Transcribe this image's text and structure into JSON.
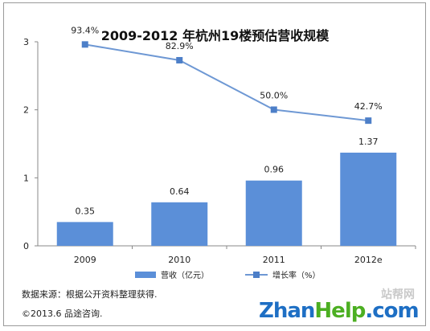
{
  "chart_data": {
    "type": "bar+line",
    "title": "2009-2012 年杭州19楼预估营收规模",
    "categories": [
      "2009",
      "2010",
      "2011",
      "2012e"
    ],
    "y_axis": {
      "ylim": [
        0,
        3
      ],
      "ticks": [
        "0",
        "1",
        "2",
        "3"
      ]
    },
    "series": [
      {
        "name": "营收（亿元）",
        "type": "bar",
        "values": [
          0.35,
          0.64,
          0.96,
          1.37
        ],
        "labels": [
          "0.35",
          "0.64",
          "0.96",
          "1.37"
        ],
        "color": "#5b8fd8"
      },
      {
        "name": "增长率（%）",
        "type": "line",
        "values": [
          93.4,
          82.9,
          50.0,
          42.7
        ],
        "labels": [
          "93.4%",
          "82.9%",
          "50.0%",
          "42.7%"
        ],
        "color": "#6e98d4"
      }
    ],
    "legend_position": "bottom",
    "grid": false
  },
  "footer": {
    "source": "数据来源：根据公开资料整理获得.",
    "copyright": "©2013.6 品途咨询."
  },
  "watermark": {
    "brand_a": "Zhan",
    "brand_b": "Help",
    "brand_c": ".com",
    "cn": "站帮网"
  }
}
